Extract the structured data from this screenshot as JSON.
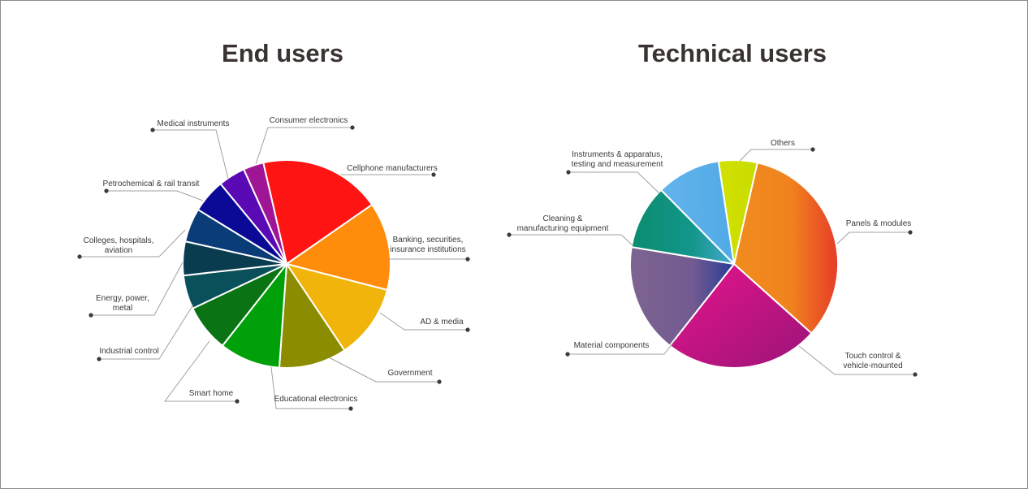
{
  "chart_data": [
    {
      "type": "pie",
      "title": "End users",
      "slices": [
        {
          "label": "Cellphone manufacturers",
          "value": 18,
          "color": "#ff1414"
        },
        {
          "label": "Banking, securities,\ninsurance institutions",
          "value": 13,
          "color": "#ff8c0a"
        },
        {
          "label": "AD & media",
          "value": 11,
          "color": "#f0b40a"
        },
        {
          "label": "Government",
          "value": 10,
          "color": "#8c8c00"
        },
        {
          "label": "Educational electronics",
          "value": 9,
          "color": "#00a00a"
        },
        {
          "label": "Smart home",
          "value": 7,
          "color": "#0a7314"
        },
        {
          "label": "Industrial control",
          "value": 5,
          "color": "#0a505a"
        },
        {
          "label": "Energy, power,\nmetal",
          "value": 5,
          "color": "#0a3c50"
        },
        {
          "label": "Colleges, hospitals,\naviation",
          "value": 5,
          "color": "#0a3c78"
        },
        {
          "label": "Petrochemical & rail transit",
          "value": 5,
          "color": "#0a0a96"
        },
        {
          "label": "Medical instruments",
          "value": 4,
          "color": "#5a0ab4"
        },
        {
          "label": "Consumer electronics",
          "value": 3,
          "color": "#a01496"
        }
      ]
    },
    {
      "type": "pie",
      "title": "Technical users",
      "slices": [
        {
          "label": "Panels & modules",
          "value": 33,
          "color": "#f0641e"
        },
        {
          "label": "Touch control &\nvehicle-mounted",
          "value": 24,
          "color": "#c81478"
        },
        {
          "label": "Material components",
          "value": 17,
          "color": "#6e5a96"
        },
        {
          "label": "Cleaning &\nmanufacturing equipment",
          "value": 10,
          "color": "#0a8c78"
        },
        {
          "label": "Instruments & apparatus,\ntesting and measurement",
          "value": 10,
          "color": "#5ab4eb"
        },
        {
          "label": "Others",
          "value": 6,
          "color": "#d2e100"
        }
      ]
    }
  ]
}
